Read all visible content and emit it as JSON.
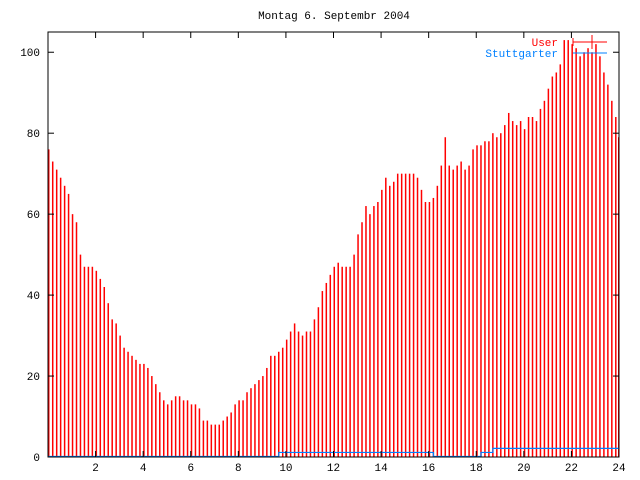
{
  "chart_data": {
    "type": "bar",
    "title": "Montag 6. Septembr 2004",
    "xlabel": "",
    "ylabel": "",
    "xlim": [
      0,
      24
    ],
    "ylim": [
      0,
      105
    ],
    "x_ticks": [
      2,
      4,
      6,
      8,
      10,
      12,
      14,
      16,
      18,
      20,
      22,
      24
    ],
    "y_ticks": [
      0,
      20,
      40,
      60,
      80,
      100
    ],
    "grid": false,
    "legend_position": "top-right",
    "series": [
      {
        "name": "User",
        "style": "impulses",
        "color": "#ff0000",
        "x_step_hours": 0.16667,
        "values": [
          76,
          73,
          71,
          69,
          67,
          65,
          60,
          58,
          50,
          47,
          47,
          47,
          46,
          44,
          42,
          38,
          34,
          33,
          30,
          27,
          26,
          25,
          24,
          23,
          23,
          22,
          20,
          18,
          16,
          14,
          13,
          14,
          15,
          15,
          14,
          14,
          13,
          13,
          12,
          9,
          9,
          8,
          8,
          8,
          9,
          10,
          11,
          13,
          14,
          14,
          16,
          17,
          18,
          19,
          20,
          22,
          25,
          25,
          26,
          27,
          29,
          31,
          33,
          31,
          30,
          31,
          31,
          34,
          37,
          41,
          43,
          45,
          47,
          48,
          47,
          47,
          47,
          50,
          55,
          58,
          62,
          60,
          62,
          63,
          66,
          69,
          67,
          68,
          70,
          70,
          70,
          70,
          70,
          69,
          66,
          63,
          63,
          64,
          67,
          72,
          79,
          72,
          71,
          72,
          73,
          71,
          72,
          76,
          77,
          77,
          78,
          78,
          80,
          79,
          80,
          82,
          85,
          83,
          82,
          83,
          81,
          84,
          84,
          83,
          86,
          88,
          91,
          94,
          95,
          97,
          103,
          103,
          102,
          101,
          99,
          100,
          101,
          100,
          102,
          99,
          95,
          92,
          88,
          84,
          79
        ]
      },
      {
        "name": "Stuttgarter",
        "style": "steps",
        "color": "#0080ff",
        "points": [
          [
            0,
            0
          ],
          [
            9.7,
            0
          ],
          [
            9.7,
            1
          ],
          [
            16.2,
            1
          ],
          [
            16.2,
            0
          ],
          [
            18.2,
            0
          ],
          [
            18.2,
            1
          ],
          [
            18.7,
            1
          ],
          [
            18.7,
            2
          ],
          [
            24,
            2
          ]
        ]
      }
    ]
  }
}
